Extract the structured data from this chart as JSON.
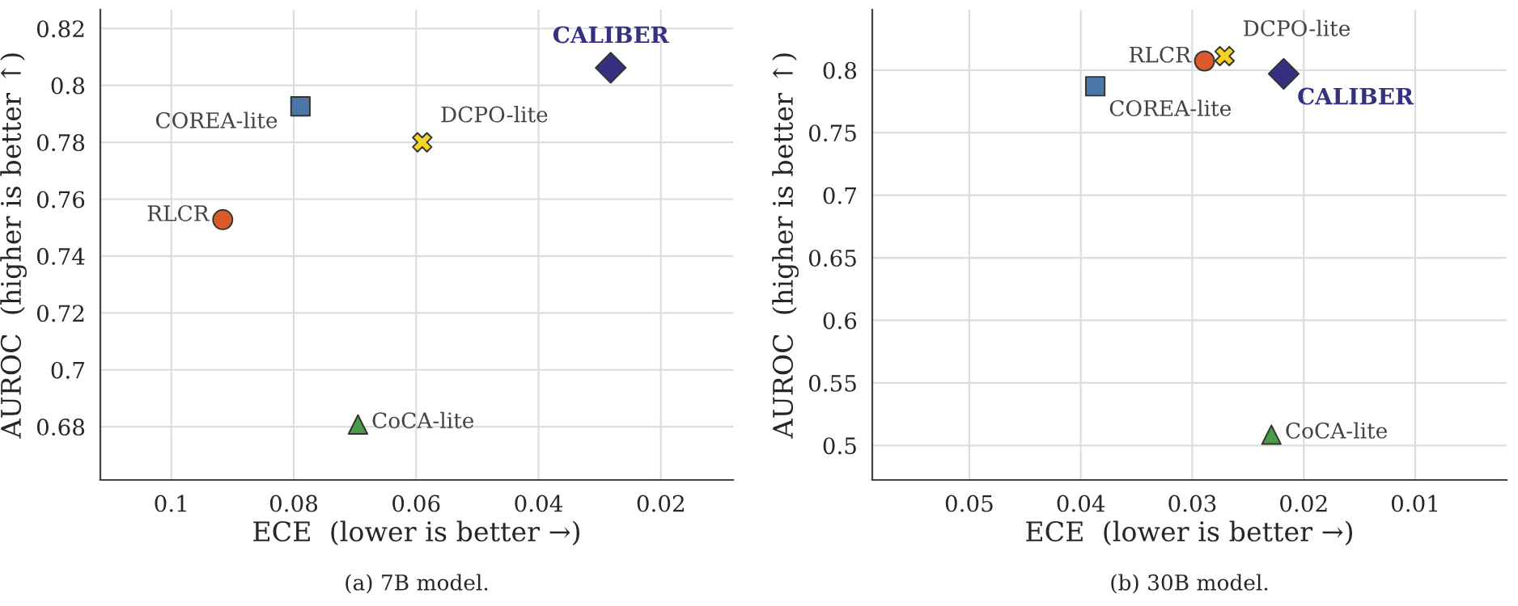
{
  "chart_data": [
    {
      "type": "scatter",
      "xlabel": "ECE  (lower is better →)",
      "ylabel": "AUROC  (higher is better ↑)",
      "annotations": [
        "(a) 7B model."
      ],
      "grid": true,
      "legend": false,
      "xlim": [
        0.1116,
        0.0082
      ],
      "xticks": [
        0.1,
        0.08,
        0.06,
        0.04,
        0.02
      ],
      "ylim": [
        0.6613,
        0.8266
      ],
      "yticks": [
        0.68,
        0.7,
        0.72,
        0.74,
        0.76,
        0.78,
        0.8,
        0.82
      ],
      "series": [
        {
          "name": "CALIBER",
          "color": "#35307f",
          "marker": "diamond",
          "x": [
            0.0282
          ],
          "values": [
            0.8062
          ]
        },
        {
          "name": "COREA-lite",
          "color": "#4a76a8",
          "marker": "square",
          "x": [
            0.0789
          ],
          "values": [
            0.7926
          ]
        },
        {
          "name": "DCPO-lite",
          "color": "#f5d327",
          "marker": "cross",
          "x": [
            0.059
          ],
          "values": [
            0.78
          ]
        },
        {
          "name": "RLCR",
          "color": "#d95a2b",
          "marker": "circle",
          "x": [
            0.0916
          ],
          "values": [
            0.7528
          ]
        },
        {
          "name": "CoCA-lite",
          "color": "#4a9a48",
          "marker": "triangle",
          "x": [
            0.0695
          ],
          "values": [
            0.6808
          ]
        }
      ]
    },
    {
      "type": "scatter",
      "xlabel": "ECE  (lower is better →)",
      "ylabel": "AUROC  (higher is better ↑)",
      "annotations": [
        "(b) 30B model."
      ],
      "grid": true,
      "legend": false,
      "xlim": [
        0.0587,
        0.0018
      ],
      "xticks": [
        0.05,
        0.04,
        0.03,
        0.02,
        0.01
      ],
      "ylim": [
        0.4724,
        0.8483
      ],
      "yticks": [
        0.5,
        0.55,
        0.6,
        0.65,
        0.7,
        0.75,
        0.8
      ],
      "series": [
        {
          "name": "CALIBER",
          "color": "#35307f",
          "marker": "diamond",
          "x": [
            0.0218
          ],
          "values": [
            0.797
          ]
        },
        {
          "name": "COREA-lite",
          "color": "#4a76a8",
          "marker": "square",
          "x": [
            0.0387
          ],
          "values": [
            0.7871
          ]
        },
        {
          "name": "DCPO-lite",
          "color": "#f5d327",
          "marker": "cross",
          "x": [
            0.0271
          ],
          "values": [
            0.8112
          ]
        },
        {
          "name": "RLCR",
          "color": "#d95a2b",
          "marker": "circle",
          "x": [
            0.0289
          ],
          "values": [
            0.8073
          ]
        },
        {
          "name": "CoCA-lite",
          "color": "#4a9a48",
          "marker": "triangle",
          "x": [
            0.0229
          ],
          "values": [
            0.5086
          ]
        }
      ]
    }
  ]
}
